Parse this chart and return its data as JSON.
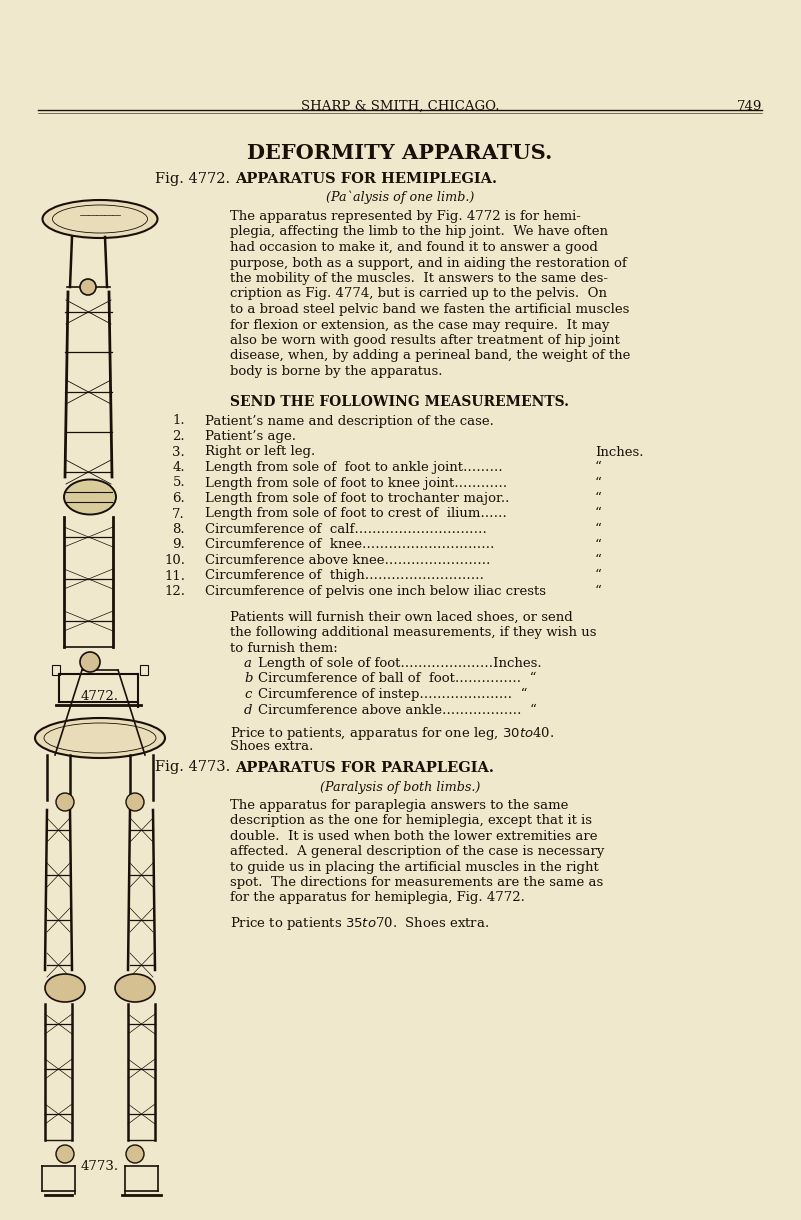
{
  "bg": "#f0e8cc",
  "text_color": "#1a1008",
  "header": "SHARP & SMITH, CHICAGO.",
  "page_num": "749",
  "title": "DEFORMITY APPARATUS.",
  "fig1_head_left": "Fig. 4772.",
  "fig1_head_right": "  APPARATUS FOR HEMIPLEGIA.",
  "fig1_sub": "(Pa‚alysis of one limb.)",
  "body1": [
    "The apparatus represented by Fig. 4772 is for hemi-",
    "plegia, affecting the limb to the hip joint.  We have often",
    "had occasion to make it, and found it to answer a good",
    "purpose, both as a support, and in aiding the restoration of",
    "the mobility of the muscles.  It answers to the same des-",
    "cription as Fig. 4774, but is carried up to the pelvis.  On",
    "to a broad steel pelvic band we fasten the artificial muscles",
    "for flexion or extension, as the case may require.  It may",
    "also be worn with good results after treatment of hip joint",
    "disease, when, by adding a perineal band, the weight of the",
    "body is borne by the apparatus."
  ],
  "send_head": "SEND THE FOLLOWING MEASUREMENTS.",
  "meas": [
    [
      "1.",
      "Patient’s name and description of the case.",
      ""
    ],
    [
      "2.",
      "Patient’s age.",
      ""
    ],
    [
      "3.",
      "Right or left leg.",
      "Inches."
    ],
    [
      "4.",
      "Length from sole of  foot to ankle joint………",
      "“"
    ],
    [
      "5.",
      "Length from sole of foot to knee joint…………",
      "“"
    ],
    [
      "6.",
      "Length from sole of foot to trochanter major..",
      "“"
    ],
    [
      "7.",
      "Length from sole of foot to crest of  ilium……",
      "“"
    ],
    [
      "8.",
      "Circumference of  calf…………………………",
      "“"
    ],
    [
      "9.",
      "Circumference of  knee…………………………",
      "“"
    ],
    [
      "10.",
      "Circumference above knee……………………",
      "“"
    ],
    [
      "11.",
      "Circumference of  thigh………………………",
      "“"
    ],
    [
      "12.",
      "Circumference of pelvis one inch below iliac crests",
      "“"
    ]
  ],
  "add_intro": [
    "Patients will furnish their own laced shoes, or send",
    "the following additional measurements, if they wish us",
    "to furnish them:"
  ],
  "add_meas": [
    [
      "a",
      "Length of sole of foot…………………Inches."
    ],
    [
      "b",
      "Circumference of ball of  foot……………  “"
    ],
    [
      "c",
      "Circumference of instep…………………  “"
    ],
    [
      "d",
      "Circumference above ankle………………  “"
    ]
  ],
  "price1a": "Price to patients, apparatus for one leg, $30 to $40.",
  "price1b": "Shoes extra.",
  "fig2_head": "Fig. 4773.  APPARATUS FOR PARAPLEGIA.",
  "fig2_sub": "(Paralysis of both limbs.)",
  "body2": [
    "The apparatus for paraplegia answers to the same",
    "description as the one for hemiplegia, except that it is",
    "double.  It is used when both the lower extremities are",
    "affected.  A general description of the case is necessary",
    "to guide us in placing the artificial muscles in the right",
    "spot.  The directions for measurements are the same as",
    "for the apparatus for hemiplegia, Fig. 4772."
  ],
  "price2": "Price to patients $35 to $70.  Shoes extra.",
  "cap1": "4772.",
  "cap2": "4773."
}
